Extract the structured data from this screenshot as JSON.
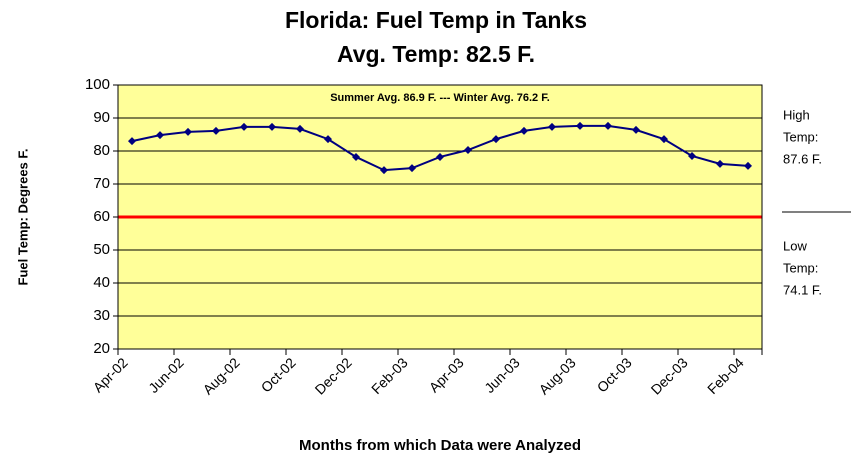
{
  "chart_data": {
    "type": "line",
    "title": [
      "Florida: Fuel Temp in Tanks",
      "Avg. Temp:  82.5 F."
    ],
    "y_label": "Fuel Temp: Degrees F.",
    "x_label": "Months from which Data were Analyzed",
    "categories": [
      "Apr-02",
      null,
      "Jun-02",
      null,
      "Aug-02",
      null,
      "Oct-02",
      null,
      "Dec-02",
      null,
      "Feb-03",
      null,
      "Apr-03",
      null,
      "Jun-03",
      null,
      "Aug-03",
      null,
      "Oct-03",
      null,
      "Dec-03",
      null,
      "Feb-04"
    ],
    "series": [
      {
        "name": "Fuel Temp",
        "color": "#000080",
        "values": [
          83.0,
          84.8,
          85.8,
          86.1,
          87.3,
          87.3,
          86.7,
          83.6,
          78.2,
          74.2,
          74.8,
          78.2,
          80.3,
          83.6,
          86.1,
          87.3,
          87.6,
          87.6,
          86.4,
          83.6,
          78.5,
          76.1,
          75.5
        ]
      }
    ],
    "ylim": [
      20,
      100
    ],
    "yticks": [
      20,
      30,
      40,
      50,
      60,
      70,
      80,
      90,
      100
    ],
    "grid": true,
    "plot_background": "#ffff99",
    "reference_line": {
      "value": 60,
      "color": "#ff0000"
    },
    "annotations": {
      "inside": "Summer Avg.  86.9 F.   ---  Winter Avg.  76.2 F.",
      "high": [
        "High",
        "Temp:",
        "87.6 F."
      ],
      "low": [
        "Low",
        "Temp:",
        "74.1 F."
      ]
    }
  }
}
